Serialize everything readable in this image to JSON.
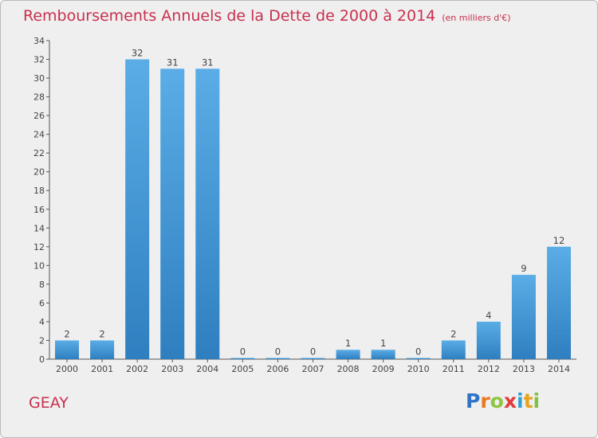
{
  "title": "Remboursements Annuels de la Dette de 2000 à 2014",
  "subtitle": "(en milliers d'€)",
  "commune": "GEAY",
  "logo": {
    "letters": [
      "P",
      "r",
      "o",
      "x",
      "i",
      "t",
      "i"
    ],
    "colors": [
      "#2f73c6",
      "#e8781e",
      "#8cc63f",
      "#e23b3b",
      "#2f9fd8",
      "#e8a21e",
      "#7dc242"
    ]
  },
  "colors": {
    "bar_top": "#5aade6",
    "bar_bottom": "#2f7fc0",
    "title": "#c8304e"
  },
  "chart_data": {
    "type": "bar",
    "title": "Remboursements Annuels de la Dette de 2000 à 2014",
    "unit": "(en milliers d'€)",
    "categories": [
      "2000",
      "2001",
      "2002",
      "2003",
      "2004",
      "2005",
      "2006",
      "2007",
      "2008",
      "2009",
      "2010",
      "2011",
      "2012",
      "2013",
      "2014"
    ],
    "values": [
      2,
      2,
      32,
      31,
      31,
      0,
      0,
      0,
      1,
      1,
      0,
      2,
      4,
      9,
      12
    ],
    "ylim": [
      0,
      34
    ],
    "yticks": [
      0,
      2,
      4,
      6,
      8,
      10,
      12,
      14,
      16,
      18,
      20,
      22,
      24,
      26,
      28,
      30,
      32,
      34
    ],
    "grid": false,
    "legend": "none"
  }
}
